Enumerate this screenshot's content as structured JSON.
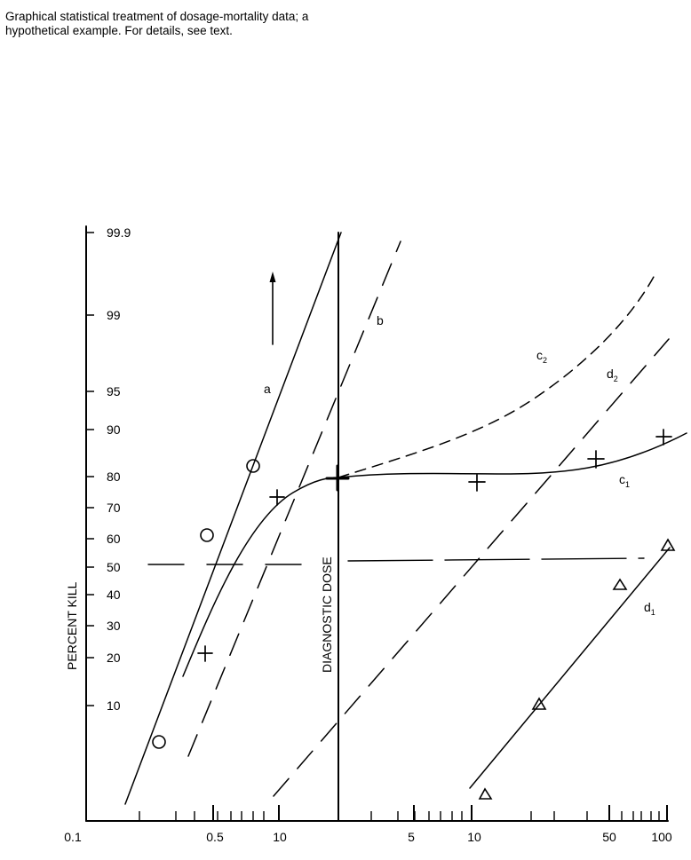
{
  "caption": "Graphical statistical treatment of dosage-mortality data; a hypothetical example.  For details, see text.",
  "chart_data": {
    "type": "line",
    "title": "",
    "ylabel": "PERCENT KILL",
    "xlabel": "",
    "yscale": "probit",
    "y_ticks": [
      "99.9",
      "99",
      "95",
      "90",
      "80",
      "70",
      "60",
      "50",
      "40",
      "30",
      "20",
      "10"
    ],
    "x_ticks": [
      "0.1",
      "0.5",
      "10",
      "5",
      "10",
      "50",
      "100"
    ],
    "vertical_line_label": "DIAGNOSTIC DOSE",
    "horizontal_reference": 50,
    "arrow": "up",
    "line_labels": {
      "a": "a",
      "b": "b",
      "c1": "c",
      "c1_sub": "1",
      "c2": "c",
      "c2_sub": "2",
      "d1": "d",
      "d1_sub": "1",
      "d2": "d",
      "d2_sub": "2"
    },
    "series": [
      {
        "name": "a",
        "style": "solid",
        "marker": "circle",
        "points": [
          [
            0.25,
            6
          ],
          [
            0.45,
            61
          ],
          [
            0.75,
            82
          ]
        ]
      },
      {
        "name": "b",
        "style": "dashed",
        "marker": "none"
      },
      {
        "name": "c1",
        "style": "solid",
        "marker": "plus",
        "points": [
          [
            0.45,
            21
          ],
          [
            0.95,
            73
          ],
          [
            2,
            79
          ],
          [
            11,
            78
          ],
          [
            45,
            84
          ],
          [
            100,
            88
          ]
        ]
      },
      {
        "name": "c2",
        "style": "dashed",
        "marker": "none"
      },
      {
        "name": "d1",
        "style": "solid",
        "marker": "triangle",
        "points": [
          [
            12,
            0.3
          ],
          [
            22,
            10
          ],
          [
            58,
            43
          ],
          [
            100,
            58
          ]
        ]
      },
      {
        "name": "d2",
        "style": "dashed",
        "marker": "none"
      }
    ]
  }
}
